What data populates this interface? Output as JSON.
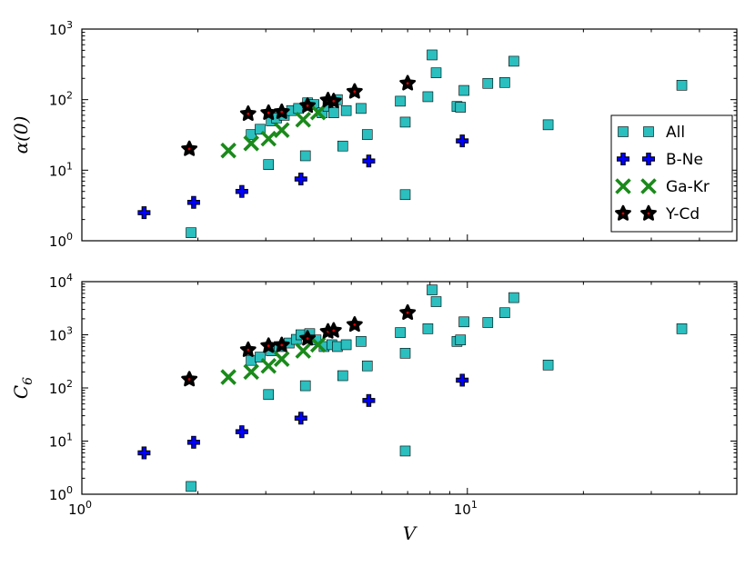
{
  "chart_data": [
    {
      "type": "scatter",
      "xscale": "log",
      "yscale": "log",
      "xlim": [
        1,
        50
      ],
      "ylim": [
        1,
        1000
      ],
      "xlabel": "",
      "ylabel": "α(0)",
      "x_ticks": [
        {
          "value": 1,
          "base": "10",
          "exp": "0"
        },
        {
          "value": 10,
          "base": "10",
          "exp": "1"
        }
      ],
      "y_ticks": [
        {
          "value": 1,
          "base": "10",
          "exp": "0"
        },
        {
          "value": 10,
          "base": "10",
          "exp": "1"
        },
        {
          "value": 100,
          "base": "10",
          "exp": "2"
        },
        {
          "value": 1000,
          "base": "10",
          "exp": "3"
        }
      ],
      "legend": {
        "position": "right"
      },
      "series": [
        {
          "name": "All",
          "marker": "square",
          "color": "#2bbfbf",
          "points": [
            [
              1.92,
              1.3
            ],
            [
              2.75,
              32
            ],
            [
              2.9,
              38
            ],
            [
              3.05,
              12
            ],
            [
              3.1,
              50
            ],
            [
              3.2,
              55
            ],
            [
              3.35,
              60
            ],
            [
              3.5,
              70
            ],
            [
              3.65,
              75
            ],
            [
              3.8,
              16
            ],
            [
              3.85,
              90
            ],
            [
              4.0,
              85
            ],
            [
              4.2,
              65
            ],
            [
              4.35,
              80
            ],
            [
              4.5,
              65
            ],
            [
              4.6,
              100
            ],
            [
              4.75,
              22
            ],
            [
              4.85,
              70
            ],
            [
              5.3,
              75
            ],
            [
              5.5,
              32
            ],
            [
              6.7,
              95
            ],
            [
              6.9,
              4.5
            ],
            [
              6.9,
              48
            ],
            [
              7.9,
              110
            ],
            [
              8.1,
              430
            ],
            [
              8.3,
              240
            ],
            [
              9.4,
              80
            ],
            [
              9.6,
              78
            ],
            [
              9.8,
              135
            ],
            [
              11.3,
              170
            ],
            [
              12.5,
              175
            ],
            [
              13.2,
              350
            ],
            [
              16.2,
              44
            ],
            [
              36.0,
              160
            ]
          ]
        },
        {
          "name": "B-Ne",
          "marker": "plus",
          "color": "#0000ff",
          "points": [
            [
              1.45,
              2.5
            ],
            [
              1.95,
              3.5
            ],
            [
              2.6,
              5.0
            ],
            [
              3.7,
              7.5
            ],
            [
              5.55,
              13.5
            ],
            [
              9.7,
              26
            ]
          ]
        },
        {
          "name": "Ga-Kr",
          "marker": "x",
          "color": "#1a8a1a",
          "points": [
            [
              2.4,
              19
            ],
            [
              2.75,
              24
            ],
            [
              3.05,
              28
            ],
            [
              3.3,
              37
            ],
            [
              3.75,
              52
            ],
            [
              4.1,
              66
            ]
          ]
        },
        {
          "name": "Y-Cd",
          "marker": "star",
          "color": "#000000",
          "points": [
            [
              1.9,
              20
            ],
            [
              2.7,
              63
            ],
            [
              3.05,
              65
            ],
            [
              3.3,
              67
            ],
            [
              3.85,
              82
            ],
            [
              4.35,
              98
            ],
            [
              4.5,
              95
            ],
            [
              5.1,
              130
            ],
            [
              7.0,
              170
            ]
          ]
        }
      ]
    },
    {
      "type": "scatter",
      "xscale": "log",
      "yscale": "log",
      "xlim": [
        1,
        50
      ],
      "ylim": [
        1,
        10000
      ],
      "xlabel": "V",
      "ylabel": "C6",
      "ylabel_main": "C",
      "ylabel_sub": "6",
      "x_ticks": [
        {
          "value": 1,
          "base": "10",
          "exp": "0"
        },
        {
          "value": 10,
          "base": "10",
          "exp": "1"
        }
      ],
      "y_ticks": [
        {
          "value": 1,
          "base": "10",
          "exp": "0"
        },
        {
          "value": 10,
          "base": "10",
          "exp": "1"
        },
        {
          "value": 100,
          "base": "10",
          "exp": "2"
        },
        {
          "value": 1000,
          "base": "10",
          "exp": "3"
        },
        {
          "value": 10000,
          "base": "10",
          "exp": "4"
        }
      ],
      "series": [
        {
          "name": "All",
          "marker": "square",
          "color": "#2bbfbf",
          "points": [
            [
              1.92,
              1.4
            ],
            [
              2.75,
              330
            ],
            [
              2.9,
              380
            ],
            [
              3.05,
              75
            ],
            [
              3.1,
              500
            ],
            [
              3.25,
              600
            ],
            [
              3.45,
              700
            ],
            [
              3.6,
              820
            ],
            [
              3.7,
              1000
            ],
            [
              3.8,
              110
            ],
            [
              3.9,
              1050
            ],
            [
              4.05,
              800
            ],
            [
              4.25,
              600
            ],
            [
              4.45,
              650
            ],
            [
              4.6,
              600
            ],
            [
              4.75,
              170
            ],
            [
              4.85,
              650
            ],
            [
              5.3,
              750
            ],
            [
              5.5,
              260
            ],
            [
              6.7,
              1100
            ],
            [
              6.9,
              6.5
            ],
            [
              6.9,
              450
            ],
            [
              7.9,
              1300
            ],
            [
              8.1,
              7000
            ],
            [
              8.3,
              4200
            ],
            [
              9.4,
              750
            ],
            [
              9.6,
              800
            ],
            [
              9.8,
              1750
            ],
            [
              11.3,
              1700
            ],
            [
              12.5,
              2600
            ],
            [
              13.2,
              5000
            ],
            [
              16.2,
              270
            ],
            [
              36.0,
              1300
            ]
          ]
        },
        {
          "name": "B-Ne",
          "marker": "plus",
          "color": "#0000ff",
          "points": [
            [
              1.45,
              6
            ],
            [
              1.95,
              9.5
            ],
            [
              2.6,
              15
            ],
            [
              3.7,
              27
            ],
            [
              5.55,
              58
            ],
            [
              9.7,
              140
            ]
          ]
        },
        {
          "name": "Ga-Kr",
          "marker": "x",
          "color": "#1a8a1a",
          "points": [
            [
              2.4,
              160
            ],
            [
              2.75,
              200
            ],
            [
              3.05,
              260
            ],
            [
              3.3,
              350
            ],
            [
              3.75,
              500
            ],
            [
              4.1,
              650
            ]
          ]
        },
        {
          "name": "Y-Cd",
          "marker": "star",
          "color": "#000000",
          "points": [
            [
              1.9,
              145
            ],
            [
              2.7,
              520
            ],
            [
              3.05,
              620
            ],
            [
              3.3,
              640
            ],
            [
              3.85,
              850
            ],
            [
              4.35,
              1150
            ],
            [
              4.5,
              1200
            ],
            [
              5.1,
              1550
            ],
            [
              7.0,
              2600
            ]
          ]
        }
      ]
    }
  ]
}
